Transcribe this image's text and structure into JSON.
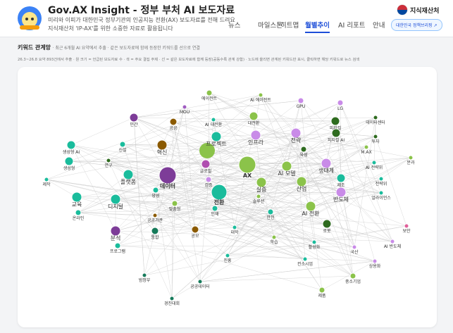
{
  "header": {
    "title": "Gov.AX Insight - 정부 부처 AI 보도자료",
    "subtitle_lines": [
      "미리와 이피가 대한민국 정부기관의 인공지능 전환(AX) 보도자료를 전해 드려요",
      "지식재산처 'IP-AX'를 위한 소중한 자료로 활용됩니다"
    ],
    "org": "지식재산처"
  },
  "nav": {
    "items": [
      "뉴스",
      "마일스톤",
      "히트맵",
      "월별추이",
      "AI 리포트",
      "안내"
    ],
    "active": "월별추이",
    "button": "대한민국 정책브리핑 ↗"
  },
  "section": {
    "title": "키워드 관계망",
    "description": "· 최근 6개월 AI 요약에서 추출 · 같은 보도자료에 함께 등장한 키워드를 선으로 연결",
    "note": "26.3~26.8 요약 893건에서 추출 · 원 크기 = 언급된 보도자료 수 · 색 = 주요 결집 주제 · 선 = 같은 보도자료에 함께 등장(공동수록 관계 강함) · 노드에 올리면 관계된 키워드만 표시, 클릭하면 해당 키워드로 뉴스 검색"
  },
  "nodes": [
    {
      "label": "에이전트",
      "color": "#8bc34a"
    },
    {
      "label": "AI 에이전트",
      "color": "#8bc34a"
    },
    {
      "label": "MOU",
      "color": "#a05cc0"
    },
    {
      "label": "GPU",
      "color": "#c98be8"
    },
    {
      "label": "LG",
      "color": "#c98be8"
    },
    {
      "label": "민간",
      "color": "#7d3c98"
    },
    {
      "label": "AI 대전환",
      "color": "#1abc9c"
    },
    {
      "label": "대전환",
      "color": "#8bc34a"
    },
    {
      "label": "데이터센터",
      "color": "#2e6b1f"
    },
    {
      "label": "공공",
      "color": "#8b5a00"
    },
    {
      "label": "피지컬",
      "color": "#2e6b1f"
    },
    {
      "label": "투자",
      "color": "#2e6b1f"
    },
    {
      "label": "생성형 AI",
      "color": "#1abc9c"
    },
    {
      "label": "프로젝트",
      "color": "#1abc9c"
    },
    {
      "label": "인프라",
      "color": "#c98be8"
    },
    {
      "label": "전략",
      "color": "#c98be8"
    },
    {
      "label": "피지컬 AI",
      "color": "#2e6b1f"
    },
    {
      "label": "혁신",
      "color": "#8b5a00"
    },
    {
      "label": "신설",
      "color": "#1abc9c"
    },
    {
      "label": "연구",
      "color": "#2e6b1f"
    },
    {
      "label": "생성형",
      "color": "#1abc9c"
    },
    {
      "label": "M.AX",
      "color": "#8bc34a"
    },
    {
      "label": "육성",
      "color": "#2e6b1f"
    },
    {
      "label": "분과",
      "color": "#8bc34a"
    },
    {
      "label": "생태계",
      "color": "#c98be8"
    },
    {
      "label": "AI 전략위",
      "color": "#1abc9c"
    },
    {
      "label": "제작",
      "color": "#1abc9c"
    },
    {
      "label": "플랫폼",
      "color": "#1abc9c"
    },
    {
      "label": "데이터",
      "color": "#7d3c98"
    },
    {
      "label": "AX",
      "color": "#8bc34a"
    },
    {
      "label": "AI 모델",
      "color": "#8bc34a"
    },
    {
      "label": "글로벌",
      "color": "#b04fb0"
    },
    {
      "label": "검증",
      "color": "#c98be8"
    },
    {
      "label": "실증",
      "color": "#8bc34a"
    },
    {
      "label": "제조",
      "color": "#1abc9c"
    },
    {
      "label": "전략위",
      "color": "#1abc9c"
    },
    {
      "label": "산업",
      "color": "#8bc34a"
    },
    {
      "label": "반도체",
      "color": "#c98be8"
    },
    {
      "label": "얼라이언스",
      "color": "#1abc9c"
    },
    {
      "label": "교육",
      "color": "#1abc9c"
    },
    {
      "label": "양성",
      "color": "#1abc9c"
    },
    {
      "label": "전환",
      "color": "#1abc9c"
    },
    {
      "label": "솔루션",
      "color": "#8bc34a"
    },
    {
      "label": "디지털",
      "color": "#1abc9c"
    },
    {
      "label": "맞춤형",
      "color": "#8bc34a"
    },
    {
      "label": "AI 전환",
      "color": "#8bc34a"
    },
    {
      "label": "온라인",
      "color": "#1abc9c"
    },
    {
      "label": "인재",
      "color": "#1abc9c"
    },
    {
      "label": "안전",
      "color": "#1abc9c"
    },
    {
      "label": "공공기관",
      "color": "#8b5a00"
    },
    {
      "label": "대학",
      "color": "#1abc9c"
    },
    {
      "label": "로봇",
      "color": "#2e6b1f"
    },
    {
      "label": "통합",
      "color": "#167a5a"
    },
    {
      "label": "공모",
      "color": "#8b5a00"
    },
    {
      "label": "분석",
      "color": "#7d3c98"
    },
    {
      "label": "보안",
      "color": "#e0609a"
    },
    {
      "label": "학습",
      "color": "#8bc34a"
    },
    {
      "label": "AI 반도체",
      "color": "#c98be8"
    },
    {
      "label": "프로그램",
      "color": "#1abc9c"
    },
    {
      "label": "활성화",
      "color": "#1abc9c"
    },
    {
      "label": "국산",
      "color": "#c98be8"
    },
    {
      "label": "진흥",
      "color": "#1abc9c"
    },
    {
      "label": "컨소시엄",
      "color": "#1abc9c"
    },
    {
      "label": "상용화",
      "color": "#c98be8"
    },
    {
      "label": "범정부",
      "color": "#167a5a"
    },
    {
      "label": "공공데이터",
      "color": "#167a5a"
    },
    {
      "label": "중소기업",
      "color": "#8bc34a"
    },
    {
      "label": "제품",
      "color": "#8bc34a"
    },
    {
      "label": "경진대회",
      "color": "#167a5a"
    }
  ]
}
